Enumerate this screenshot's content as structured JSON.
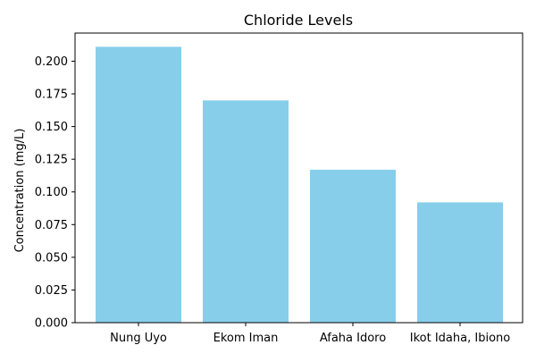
{
  "chart_data": {
    "type": "bar",
    "title": "Chloride Levels",
    "xlabel": "",
    "ylabel": "Concentration (mg/L)",
    "categories": [
      "Nung Uyo",
      "Ekom Iman",
      "Afaha Idoro",
      "Ikot Idaha, Ibiono"
    ],
    "values": [
      0.211,
      0.17,
      0.117,
      0.092
    ],
    "ylim": [
      0,
      0.2215
    ],
    "yticks": [
      0.0,
      0.025,
      0.05,
      0.075,
      0.1,
      0.125,
      0.15,
      0.175,
      0.2
    ],
    "ytick_labels": [
      "0.000",
      "0.025",
      "0.050",
      "0.075",
      "0.100",
      "0.125",
      "0.150",
      "0.175",
      "0.200"
    ],
    "bar_color": "#87ceeb",
    "grid": false,
    "legend": "none"
  }
}
